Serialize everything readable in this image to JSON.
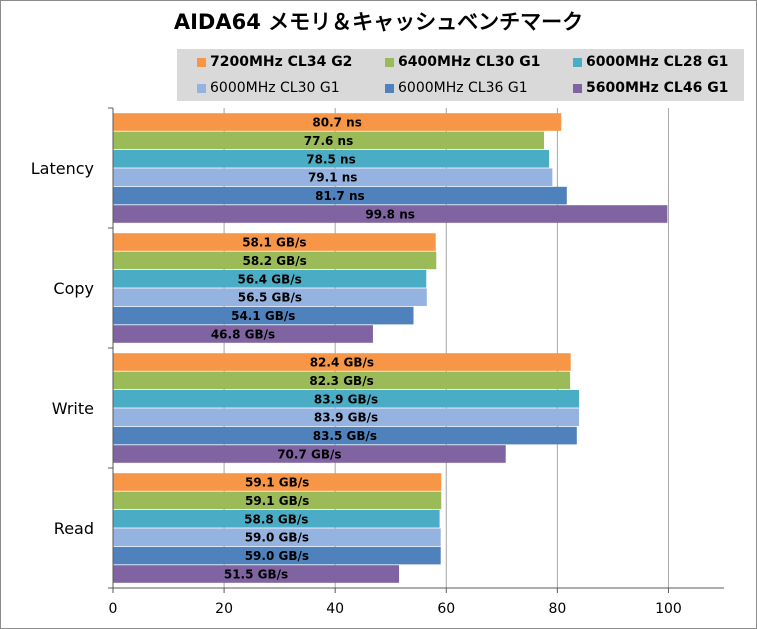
{
  "chart_data": {
    "type": "bar",
    "orientation": "horizontal",
    "title": "AIDA64 メモリ＆キャッシュベンチマーク",
    "xlabel": "",
    "ylabel": "",
    "xlim": [
      0,
      110
    ],
    "xticks": [
      0,
      20,
      40,
      60,
      80,
      100
    ],
    "grid": true,
    "legend_position": "top-right",
    "categories": [
      "Latency",
      "Copy",
      "Write",
      "Read"
    ],
    "series": [
      {
        "name": "7200MHz CL34 G2",
        "color": "#f79646",
        "bold": true,
        "values": [
          80.7,
          58.1,
          82.4,
          59.1
        ],
        "labels": [
          "80.7 ns",
          "58.1 GB/s",
          "82.4 GB/s",
          "59.1 GB/s"
        ]
      },
      {
        "name": "6400MHz CL30 G1",
        "color": "#9bbb59",
        "bold": true,
        "values": [
          77.6,
          58.2,
          82.3,
          59.1
        ],
        "labels": [
          "77.6 ns",
          "58.2 GB/s",
          "82.3 GB/s",
          "59.1 GB/s"
        ]
      },
      {
        "name": "6000MHz CL28 G1",
        "color": "#4bacc6",
        "bold": true,
        "values": [
          78.5,
          56.4,
          83.9,
          58.8
        ],
        "labels": [
          "78.5 ns",
          "56.4 GB/s",
          "83.9 GB/s",
          "58.8 GB/s"
        ]
      },
      {
        "name": "6000MHz CL30 G1",
        "color": "#95b3e1",
        "bold": false,
        "values": [
          79.1,
          56.5,
          83.9,
          59.0
        ],
        "labels": [
          "79.1 ns",
          "56.5 GB/s",
          "83.9 GB/s",
          "59.0 GB/s"
        ]
      },
      {
        "name": "6000MHz CL36 G1",
        "color": "#4f81bd",
        "bold": false,
        "values": [
          81.7,
          54.1,
          83.5,
          59.0
        ],
        "labels": [
          "81.7 ns",
          "54.1 GB/s",
          "83.5 GB/s",
          "59.0 GB/s"
        ]
      },
      {
        "name": "5600MHz CL46 G1",
        "color": "#8064a2",
        "bold": true,
        "values": [
          99.8,
          46.8,
          70.7,
          51.5
        ],
        "labels": [
          "99.8 ns",
          "46.8 GB/s",
          "70.7 GB/s",
          "51.5 GB/s"
        ]
      }
    ]
  }
}
